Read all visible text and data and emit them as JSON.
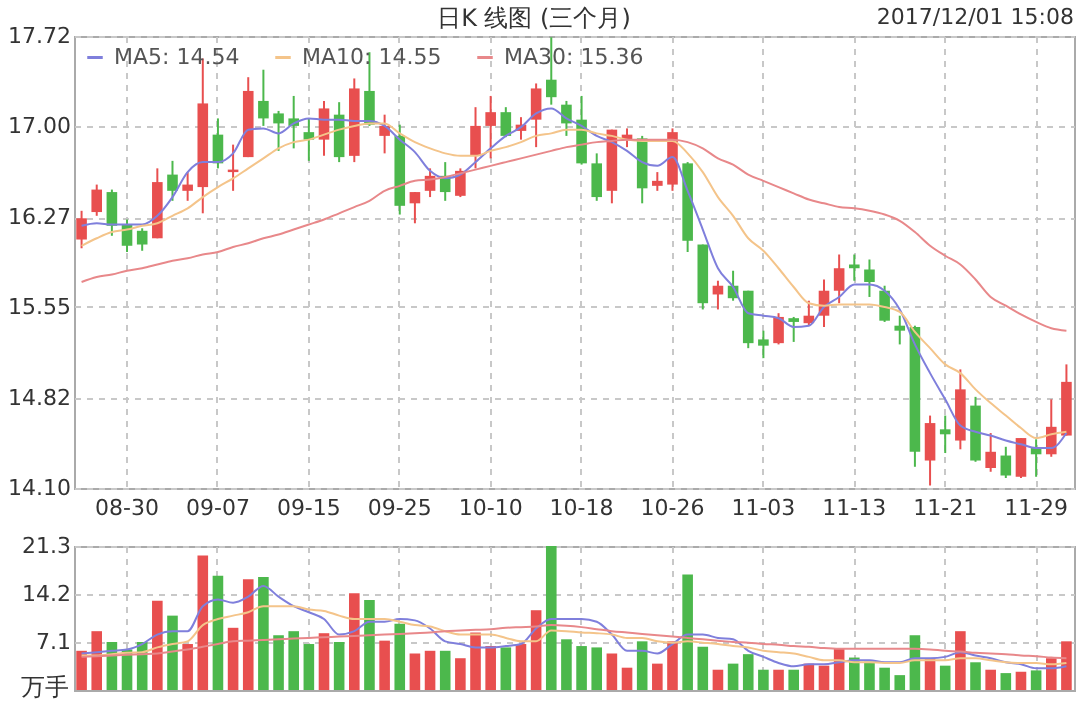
{
  "chart_data": [
    {
      "type": "candlestick",
      "title": "日K 线图 (三个月)",
      "annotations": [
        "2017/12/01 15:08"
      ],
      "categories": [
        null,
        null,
        null,
        "08-30",
        null,
        null,
        null,
        null,
        null,
        "09-07",
        null,
        null,
        null,
        null,
        null,
        "09-15",
        null,
        null,
        null,
        null,
        null,
        "09-25",
        null,
        null,
        null,
        null,
        null,
        "10-10",
        null,
        null,
        null,
        null,
        null,
        "10-18",
        null,
        null,
        null,
        null,
        null,
        "10-26",
        null,
        null,
        null,
        null,
        null,
        "11-03",
        null,
        null,
        null,
        null,
        null,
        "11-13",
        null,
        null,
        null,
        null,
        null,
        "11-21",
        null,
        null,
        null,
        null,
        null,
        "11-29",
        null,
        null
      ],
      "ohlc": [
        [
          16.09,
          16.32,
          16.02,
          16.26
        ],
        [
          16.31,
          16.53,
          16.28,
          16.49
        ],
        [
          16.47,
          16.49,
          16.12,
          16.2
        ],
        [
          16.21,
          16.25,
          15.99,
          16.04
        ],
        [
          16.16,
          16.18,
          16.0,
          16.05
        ],
        [
          16.1,
          16.66,
          16.1,
          16.55
        ],
        [
          16.61,
          16.72,
          16.4,
          16.48
        ],
        [
          16.48,
          16.63,
          16.4,
          16.53
        ],
        [
          16.51,
          17.54,
          16.3,
          17.18
        ],
        [
          16.93,
          17.06,
          16.66,
          16.7
        ],
        [
          16.63,
          16.85,
          16.48,
          16.65
        ],
        [
          16.75,
          17.39,
          16.75,
          17.28
        ],
        [
          17.2,
          17.45,
          17.0,
          17.06
        ],
        [
          17.1,
          17.12,
          16.8,
          17.02
        ],
        [
          17.06,
          17.24,
          16.82,
          17.0
        ],
        [
          16.95,
          17.06,
          16.72,
          16.89
        ],
        [
          16.89,
          17.2,
          16.76,
          17.14
        ],
        [
          17.09,
          17.19,
          16.71,
          16.75
        ],
        [
          16.76,
          17.38,
          16.71,
          17.3
        ],
        [
          17.28,
          17.59,
          17.0,
          17.01
        ],
        [
          16.92,
          17.09,
          16.78,
          17.0
        ],
        [
          16.92,
          17.01,
          16.29,
          16.36
        ],
        [
          16.38,
          16.47,
          16.22,
          16.47
        ],
        [
          16.48,
          16.66,
          16.43,
          16.6
        ],
        [
          16.6,
          16.71,
          16.4,
          16.47
        ],
        [
          16.44,
          16.66,
          16.43,
          16.64
        ],
        [
          16.76,
          17.15,
          16.66,
          17.0
        ],
        [
          17.0,
          17.24,
          16.74,
          17.11
        ],
        [
          17.11,
          17.15,
          16.91,
          16.92
        ],
        [
          16.96,
          17.07,
          16.89,
          17.01
        ],
        [
          17.05,
          17.34,
          16.83,
          17.3
        ],
        [
          17.37,
          17.71,
          17.17,
          17.23
        ],
        [
          17.17,
          17.2,
          16.92,
          17.02
        ],
        [
          17.05,
          17.24,
          16.69,
          16.7
        ],
        [
          16.7,
          16.78,
          16.4,
          16.43
        ],
        [
          16.48,
          16.97,
          16.38,
          16.97
        ],
        [
          16.89,
          16.98,
          16.83,
          16.93
        ],
        [
          16.9,
          16.92,
          16.38,
          16.5
        ],
        [
          16.52,
          16.63,
          16.48,
          16.56
        ],
        [
          16.53,
          16.98,
          16.48,
          16.95
        ],
        [
          16.7,
          16.71,
          15.99,
          16.08
        ],
        [
          16.05,
          16.05,
          15.53,
          15.58
        ],
        [
          15.65,
          15.76,
          15.53,
          15.72
        ],
        [
          15.72,
          15.84,
          15.6,
          15.62
        ],
        [
          15.68,
          15.68,
          15.22,
          15.26
        ],
        [
          15.29,
          15.36,
          15.14,
          15.24
        ],
        [
          15.26,
          15.5,
          15.25,
          15.47
        ],
        [
          15.46,
          15.47,
          15.27,
          15.43
        ],
        [
          15.42,
          15.6,
          15.4,
          15.48
        ],
        [
          15.48,
          15.77,
          15.39,
          15.68
        ],
        [
          15.68,
          15.97,
          15.58,
          15.86
        ],
        [
          15.89,
          15.97,
          15.76,
          15.86
        ],
        [
          15.85,
          15.93,
          15.63,
          15.75
        ],
        [
          15.68,
          15.72,
          15.43,
          15.44
        ],
        [
          15.4,
          15.48,
          15.25,
          15.36
        ],
        [
          15.39,
          15.4,
          14.27,
          14.39
        ],
        [
          14.32,
          14.68,
          14.12,
          14.62
        ],
        [
          14.57,
          14.68,
          14.38,
          14.53
        ],
        [
          14.48,
          15.05,
          14.41,
          14.89
        ],
        [
          14.76,
          14.83,
          14.31,
          14.32
        ],
        [
          14.26,
          14.54,
          14.23,
          14.39
        ],
        [
          14.36,
          14.43,
          14.18,
          14.2
        ],
        [
          14.19,
          14.5,
          14.18,
          14.5
        ],
        [
          14.42,
          14.49,
          14.19,
          14.37
        ],
        [
          14.37,
          14.81,
          14.35,
          14.59
        ],
        [
          14.52,
          15.09,
          14.52,
          14.95
        ]
      ],
      "colors": [
        "#e84f4f",
        "#e84f4f",
        "#4cb84c",
        "#4cb84c",
        "#4cb84c",
        "#e84f4f",
        "#4cb84c",
        "#e84f4f",
        "#e84f4f",
        "#4cb84c",
        "#e84f4f",
        "#e84f4f",
        "#4cb84c",
        "#4cb84c",
        "#4cb84c",
        "#4cb84c",
        "#e84f4f",
        "#4cb84c",
        "#e84f4f",
        "#4cb84c",
        "#e84f4f",
        "#4cb84c",
        "#e84f4f",
        "#e84f4f",
        "#4cb84c",
        "#e84f4f",
        "#e84f4f",
        "#e84f4f",
        "#4cb84c",
        "#e84f4f",
        "#e84f4f",
        "#4cb84c",
        "#4cb84c",
        "#4cb84c",
        "#4cb84c",
        "#e84f4f",
        "#e84f4f",
        "#4cb84c",
        "#e84f4f",
        "#e84f4f",
        "#4cb84c",
        "#4cb84c",
        "#e84f4f",
        "#4cb84c",
        "#4cb84c",
        "#4cb84c",
        "#e84f4f",
        "#4cb84c",
        "#e84f4f",
        "#e84f4f",
        "#e84f4f",
        "#4cb84c",
        "#4cb84c",
        "#4cb84c",
        "#4cb84c",
        "#4cb84c",
        "#e84f4f",
        "#4cb84c",
        "#e84f4f",
        "#4cb84c",
        "#e84f4f",
        "#4cb84c",
        "#e84f4f",
        "#4cb84c",
        "#e84f4f",
        "#e84f4f"
      ],
      "series": [
        {
          "type": "line",
          "name": "MA5: 14.54",
          "color": "#7f7fdc",
          "values": [
            16.2,
            16.22,
            16.21,
            16.21,
            16.21,
            16.28,
            16.43,
            16.63,
            16.71,
            16.71,
            16.78,
            16.97,
            16.98,
            16.94,
            17.02,
            17.06,
            17.05,
            17.05,
            17.04,
            17.04,
            17.0,
            16.89,
            16.79,
            16.64,
            16.58,
            16.61,
            16.71,
            16.82,
            16.92,
            16.99,
            17.1,
            17.14,
            17.06,
            17.0,
            16.92,
            16.87,
            16.8,
            16.71,
            16.68,
            16.75,
            16.48,
            16.17,
            15.86,
            15.71,
            15.5,
            15.48,
            15.46,
            15.39,
            15.4,
            15.55,
            15.63,
            15.73,
            15.73,
            15.68,
            15.53,
            15.25,
            15.02,
            14.81,
            14.6,
            14.55,
            14.52,
            14.48,
            14.45,
            14.42,
            14.42,
            14.54
          ]
        },
        {
          "type": "line",
          "name": "MA10: 14.55",
          "color": "#f4c48a",
          "values": [
            16.04,
            16.1,
            16.15,
            16.17,
            16.2,
            16.22,
            16.28,
            16.34,
            16.43,
            16.51,
            16.58,
            16.66,
            16.74,
            16.82,
            16.87,
            16.89,
            16.93,
            16.97,
            17.0,
            17.02,
            17.02,
            16.94,
            16.87,
            16.82,
            16.78,
            16.76,
            16.76,
            16.8,
            16.83,
            16.87,
            16.92,
            16.94,
            16.97,
            16.97,
            16.94,
            16.92,
            16.89,
            16.88,
            16.88,
            16.88,
            16.78,
            16.63,
            16.43,
            16.28,
            16.1,
            16.0,
            15.86,
            15.71,
            15.58,
            15.56,
            15.57,
            15.57,
            15.57,
            15.55,
            15.51,
            15.35,
            15.22,
            15.09,
            15.02,
            14.89,
            14.78,
            14.68,
            14.58,
            14.5,
            14.53,
            14.55
          ]
        },
        {
          "type": "line",
          "name": "MA30: 15.36",
          "color": "#e8888a",
          "values": [
            15.75,
            15.79,
            15.81,
            15.84,
            15.86,
            15.89,
            15.92,
            15.94,
            15.97,
            15.99,
            16.03,
            16.06,
            16.1,
            16.13,
            16.17,
            16.21,
            16.25,
            16.3,
            16.35,
            16.4,
            16.48,
            16.52,
            16.56,
            16.57,
            16.59,
            16.62,
            16.65,
            16.68,
            16.71,
            16.74,
            16.77,
            16.8,
            16.83,
            16.85,
            16.87,
            16.88,
            16.89,
            16.89,
            16.89,
            16.89,
            16.87,
            16.82,
            16.74,
            16.69,
            16.61,
            16.56,
            16.51,
            16.46,
            16.41,
            16.38,
            16.35,
            16.34,
            16.32,
            16.29,
            16.24,
            16.15,
            16.04,
            15.96,
            15.89,
            15.77,
            15.63,
            15.56,
            15.49,
            15.43,
            15.38,
            15.36
          ]
        }
      ],
      "ylim": [
        14.1,
        17.72
      ],
      "yticks": [
        {
          "value": 14.1,
          "label": "14.10"
        },
        14.82,
        15.55,
        16.27,
        {
          "value": 17.0,
          "label": "17.00"
        },
        17.72
      ],
      "grid": true,
      "legend": "top left"
    },
    {
      "type": "bar",
      "ylabel": "万手",
      "series": [
        {
          "type": "bar",
          "values": [
            5.8,
            8.7,
            7.1,
            6.0,
            7.1,
            13.2,
            11.0,
            6.8,
            19.9,
            16.9,
            9.2,
            16.4,
            16.7,
            8.1,
            8.7,
            6.8,
            8.4,
            7.1,
            14.3,
            13.3,
            7.3,
            9.8,
            5.4,
            5.8,
            5.8,
            4.7,
            8.5,
            6.5,
            6.3,
            6.8,
            11.8,
            21.3,
            7.5,
            6.5,
            6.3,
            5.4,
            3.3,
            7.2,
            3.9,
            7.2,
            17.1,
            6.4,
            3.0,
            3.9,
            5.3,
            3.0,
            3.0,
            3.0,
            3.9,
            3.6,
            6.1,
            4.8,
            4.2,
            3.3,
            2.2,
            8.1,
            4.7,
            3.6,
            8.7,
            4.1,
            3.0,
            2.5,
            2.7,
            2.9,
            4.7,
            7.2
          ],
          "colors": [
            "#e84f4f",
            "#e84f4f",
            "#4cb84c",
            "#4cb84c",
            "#4cb84c",
            "#e84f4f",
            "#4cb84c",
            "#e84f4f",
            "#e84f4f",
            "#4cb84c",
            "#e84f4f",
            "#e84f4f",
            "#4cb84c",
            "#4cb84c",
            "#4cb84c",
            "#4cb84c",
            "#e84f4f",
            "#4cb84c",
            "#e84f4f",
            "#4cb84c",
            "#e84f4f",
            "#4cb84c",
            "#e84f4f",
            "#e84f4f",
            "#4cb84c",
            "#e84f4f",
            "#e84f4f",
            "#e84f4f",
            "#4cb84c",
            "#e84f4f",
            "#e84f4f",
            "#4cb84c",
            "#4cb84c",
            "#4cb84c",
            "#4cb84c",
            "#e84f4f",
            "#e84f4f",
            "#4cb84c",
            "#e84f4f",
            "#e84f4f",
            "#4cb84c",
            "#4cb84c",
            "#e84f4f",
            "#4cb84c",
            "#4cb84c",
            "#4cb84c",
            "#e84f4f",
            "#4cb84c",
            "#e84f4f",
            "#e84f4f",
            "#e84f4f",
            "#4cb84c",
            "#4cb84c",
            "#4cb84c",
            "#4cb84c",
            "#4cb84c",
            "#e84f4f",
            "#4cb84c",
            "#e84f4f",
            "#4cb84c",
            "#e84f4f",
            "#4cb84c",
            "#e84f4f",
            "#4cb84c",
            "#e84f4f",
            "#e84f4f"
          ]
        },
        {
          "type": "line",
          "color": "#7f7fdc",
          "values": [
            5.4,
            5.6,
            5.8,
            6.0,
            6.8,
            8.2,
            8.7,
            8.7,
            12.4,
            13.4,
            12.9,
            13.8,
            15.4,
            13.8,
            12.4,
            11.5,
            10.5,
            8.2,
            8.7,
            10.1,
            10.1,
            10.5,
            10.3,
            9.1,
            7.2,
            6.8,
            6.3,
            6.3,
            6.5,
            6.8,
            9.1,
            10.5,
            10.5,
            10.5,
            10.1,
            8.2,
            5.8,
            5.8,
            5.4,
            6.8,
            8.2,
            8.2,
            7.7,
            7.5,
            5.8,
            4.9,
            4.0,
            3.5,
            3.8,
            3.8,
            4.1,
            4.4,
            4.4,
            4.1,
            4.1,
            4.7,
            4.7,
            4.9,
            5.6,
            5.1,
            4.7,
            4.1,
            3.8,
            3.2,
            3.2,
            3.5
          ]
        },
        {
          "type": "line",
          "color": "#f4c48a",
          "values": [
            5.1,
            5.1,
            5.3,
            5.5,
            5.6,
            6.3,
            6.8,
            7.2,
            9.6,
            10.5,
            11.0,
            11.5,
            12.4,
            12.4,
            12.4,
            11.9,
            11.7,
            11.0,
            10.5,
            10.5,
            10.5,
            10.1,
            9.6,
            9.4,
            8.7,
            8.2,
            8.2,
            8.2,
            7.7,
            7.2,
            7.2,
            8.8,
            8.7,
            8.5,
            8.4,
            8.2,
            7.7,
            7.7,
            7.2,
            7.0,
            7.2,
            7.0,
            6.8,
            6.5,
            6.3,
            5.8,
            5.6,
            5.4,
            4.9,
            4.4,
            4.4,
            4.1,
            4.1,
            4.0,
            4.0,
            4.4,
            4.4,
            4.4,
            4.7,
            4.7,
            4.4,
            4.1,
            4.0,
            4.0,
            3.8,
            4.0
          ]
        },
        {
          "type": "line",
          "color": "#e8888a",
          "values": [
            4.9,
            5.0,
            5.1,
            5.2,
            5.3,
            5.4,
            5.7,
            6.0,
            6.4,
            6.8,
            7.2,
            7.3,
            7.4,
            7.5,
            7.6,
            7.7,
            7.8,
            7.9,
            8.0,
            8.1,
            8.2,
            8.3,
            8.4,
            8.5,
            8.7,
            8.8,
            8.9,
            9.0,
            9.2,
            9.3,
            9.4,
            9.6,
            9.5,
            9.3,
            9.0,
            8.7,
            8.5,
            8.3,
            8.1,
            7.9,
            7.7,
            7.5,
            7.3,
            7.1,
            7.0,
            6.8,
            6.7,
            6.5,
            6.4,
            6.2,
            6.1,
            6.1,
            6.1,
            6.1,
            6.1,
            6.1,
            6.0,
            5.8,
            5.7,
            5.5,
            5.4,
            5.3,
            5.1,
            5.0,
            4.8,
            4.7
          ]
        }
      ],
      "ylim": [
        0,
        21.3
      ],
      "yticks": [
        7.1,
        14.2,
        21.3
      ],
      "grid": true,
      "tick_labels": "y"
    }
  ]
}
